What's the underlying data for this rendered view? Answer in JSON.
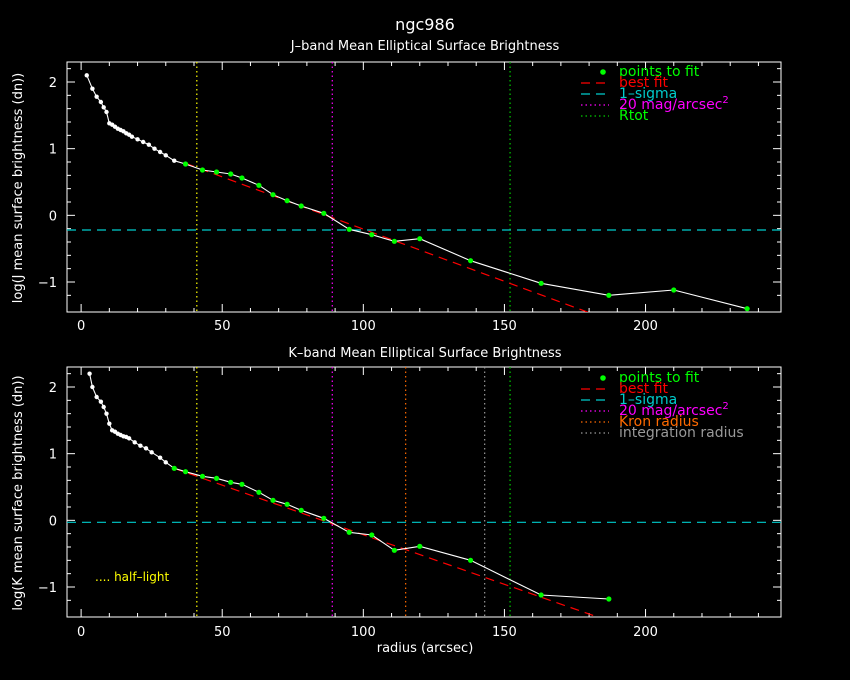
{
  "main_title": "ngc986",
  "xlabel": "radius (arcsec)",
  "colors": {
    "fit_points": "#00ff00",
    "best_fit": "#ff0000",
    "sigma": "#00cccc",
    "mag20": "#ff00ff",
    "rtot": "#00cc00",
    "kron": "#ff6a00",
    "integration": "#999999",
    "half_light": "#ffff00",
    "profile": "#ffffff"
  },
  "chart_data": [
    {
      "type": "line",
      "title": "J–band Mean Elliptical Surface Brightness",
      "ylabel": "log(J mean surface brightness (dn))",
      "xlim": [
        -5,
        248
      ],
      "ylim": [
        -1.45,
        2.3
      ],
      "xticks": [
        0,
        50,
        100,
        150,
        200
      ],
      "yticks": [
        2,
        1,
        0,
        -1
      ],
      "xtick_labels": [
        "0",
        "50",
        "100",
        "150",
        "200"
      ],
      "ytick_labels": [
        "2",
        "1",
        "0",
        "−1"
      ],
      "profile": {
        "x": [
          2,
          4,
          5.5,
          7,
          8,
          9,
          10,
          11,
          12,
          13,
          14,
          15,
          16,
          17,
          18,
          20,
          22,
          24,
          26,
          28,
          30,
          33,
          37,
          43,
          48,
          53,
          57,
          63,
          68,
          73,
          78,
          86,
          95,
          103,
          111,
          120,
          138,
          163,
          187,
          210,
          236
        ],
        "y": [
          2.1,
          1.9,
          1.78,
          1.7,
          1.62,
          1.55,
          1.38,
          1.36,
          1.33,
          1.3,
          1.28,
          1.26,
          1.23,
          1.21,
          1.18,
          1.14,
          1.1,
          1.06,
          1.0,
          0.95,
          0.9,
          0.82,
          0.77,
          0.68,
          0.65,
          0.62,
          0.56,
          0.45,
          0.31,
          0.22,
          0.14,
          0.03,
          -0.21,
          -0.29,
          -0.39,
          -0.35,
          -0.68,
          -1.02,
          -1.2,
          -1.12,
          -1.4
        ]
      },
      "fit_points_x": [
        37,
        43,
        48,
        53,
        57,
        63,
        68,
        73,
        78,
        86,
        95,
        103,
        111,
        120,
        138,
        163,
        187,
        210,
        236
      ],
      "best_fit": {
        "x": [
          37,
          180
        ],
        "y": [
          0.78,
          -1.46
        ]
      },
      "sigma_y": -0.22,
      "vlines": [
        {
          "key": "half_light",
          "x": 41
        },
        {
          "key": "mag20",
          "x": 89
        },
        {
          "key": "rtot",
          "x": 152
        }
      ],
      "legend": [
        {
          "label": "points to fit",
          "key": "fit_points",
          "text_color": "#00ff00",
          "style": "dot"
        },
        {
          "label": "best fit",
          "key": "best_fit",
          "text_color": "#ff0000",
          "style": "longdash"
        },
        {
          "label": "1–sigma",
          "key": "sigma",
          "text_color": "#00cccc",
          "style": "dash"
        },
        {
          "label": "20 mag/arcsec",
          "superscript": "2",
          "key": "mag20",
          "text_color": "#ff00ff",
          "style": "dot3"
        },
        {
          "label": "Rtot",
          "key": "rtot",
          "text_color": "#00ff00",
          "style": "dot3"
        }
      ]
    },
    {
      "type": "line",
      "title": "K–band Mean Elliptical Surface Brightness",
      "ylabel": "log(K mean surface brightness (dn))",
      "xlim": [
        -5,
        248
      ],
      "ylim": [
        -1.45,
        2.3
      ],
      "xticks": [
        0,
        50,
        100,
        150,
        200
      ],
      "yticks": [
        2,
        1,
        0,
        -1
      ],
      "xtick_labels": [
        "0",
        "50",
        "100",
        "150",
        "200"
      ],
      "ytick_labels": [
        "2",
        "1",
        "0",
        "−1"
      ],
      "profile": {
        "x": [
          3,
          4,
          5.5,
          7,
          8,
          9,
          10,
          11,
          12,
          13,
          14,
          15,
          16,
          17,
          19,
          21,
          23,
          25,
          28,
          30,
          33,
          37,
          43,
          48,
          53,
          57,
          63,
          68,
          73,
          78,
          86,
          95,
          103,
          111,
          120,
          138,
          163,
          187
        ],
        "y": [
          2.2,
          2.0,
          1.85,
          1.78,
          1.7,
          1.6,
          1.45,
          1.35,
          1.33,
          1.3,
          1.28,
          1.26,
          1.25,
          1.23,
          1.17,
          1.12,
          1.08,
          1.02,
          0.94,
          0.87,
          0.78,
          0.73,
          0.66,
          0.63,
          0.57,
          0.54,
          0.42,
          0.3,
          0.24,
          0.15,
          0.03,
          -0.18,
          -0.22,
          -0.45,
          -0.39,
          -0.6,
          -1.12,
          -1.18
        ]
      },
      "fit_points_x": [
        33,
        37,
        43,
        48,
        53,
        57,
        63,
        68,
        73,
        78,
        86,
        95,
        103,
        111,
        120,
        138,
        163,
        187
      ],
      "best_fit": {
        "x": [
          33,
          183
        ],
        "y": [
          0.78,
          -1.45
        ]
      },
      "sigma_y": -0.03,
      "vlines": [
        {
          "key": "half_light",
          "x": 41
        },
        {
          "key": "mag20",
          "x": 89
        },
        {
          "key": "kron",
          "x": 115
        },
        {
          "key": "integration",
          "x": 143
        },
        {
          "key": "rtot",
          "x": 152
        }
      ],
      "legend": [
        {
          "label": "points to fit",
          "key": "fit_points",
          "text_color": "#00ff00",
          "style": "dot"
        },
        {
          "label": "best fit",
          "key": "best_fit",
          "text_color": "#ff0000",
          "style": "longdash"
        },
        {
          "label": "1–sigma",
          "key": "sigma",
          "text_color": "#00cccc",
          "style": "dash"
        },
        {
          "label": "20 mag/arcsec",
          "superscript": "2",
          "key": "mag20",
          "text_color": "#ff00ff",
          "style": "dot3"
        },
        {
          "label": "Kron radius",
          "key": "kron",
          "text_color": "#ff6a00",
          "style": "dot3"
        },
        {
          "label": "integration radius",
          "key": "integration",
          "text_color": "#999999",
          "style": "dot3"
        }
      ],
      "half_light_label": "half–light"
    }
  ]
}
